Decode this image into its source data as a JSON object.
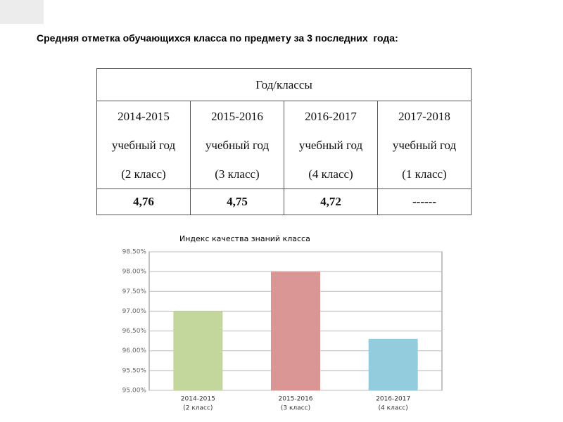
{
  "title": "Средняя отметка обучающихся класса по предмету за 3 последних  года:",
  "table": {
    "header": "Год/классы",
    "rows": [
      [
        [
          "2014-2015",
          "учебный год",
          "(2 класс)"
        ],
        [
          "2015-2016",
          "учебный год",
          "(3 класс)"
        ],
        [
          "2016-2017",
          "учебный год",
          "(4 класс)"
        ],
        [
          "2017-2018",
          "учебный год",
          "(1 класс)"
        ]
      ],
      [
        "4,76",
        "4,75",
        "4,72",
        "------"
      ]
    ]
  },
  "chart_data": {
    "type": "bar",
    "title": "Индекс качества знаний класса",
    "categories": [
      [
        "2014-2015",
        "(2 класс)"
      ],
      [
        "2015-2016",
        "(3 класс)"
      ],
      [
        "2016-2017",
        "(4 класс)"
      ]
    ],
    "values": [
      97.0,
      98.0,
      96.3
    ],
    "colors": [
      "#c3d69b",
      "#d99694",
      "#93cddd"
    ],
    "ylim": [
      95,
      98.5
    ],
    "yticks": [
      {
        "value": 95,
        "label": "95.00%"
      },
      {
        "value": 95.5,
        "label": "95.50%"
      },
      {
        "value": 96,
        "label": "96.00%"
      },
      {
        "value": 96.5,
        "label": "96.50%"
      },
      {
        "value": 97,
        "label": "97.00%"
      },
      {
        "value": 97.5,
        "label": "97.50%"
      },
      {
        "value": 98,
        "label": "98.00%"
      },
      {
        "value": 98.5,
        "label": "98.50%"
      }
    ],
    "grid": true
  }
}
